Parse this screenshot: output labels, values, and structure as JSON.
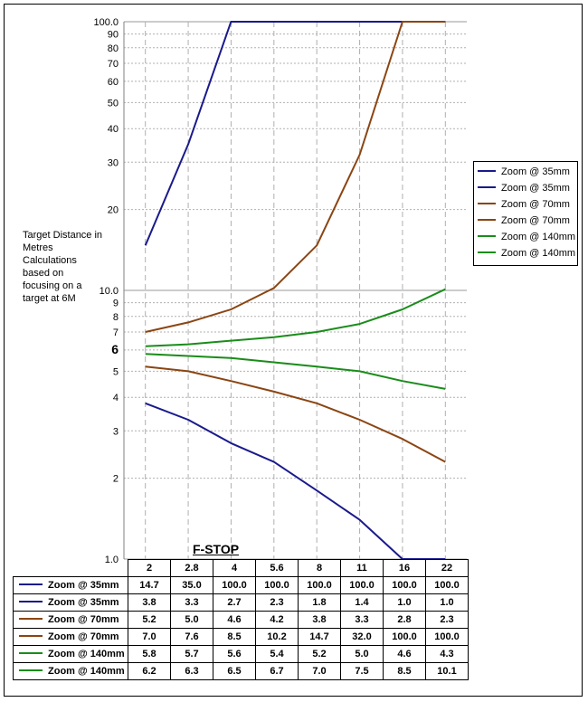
{
  "chart_data": {
    "type": "line",
    "x": [
      "2",
      "2.8",
      "4",
      "5.6",
      "8",
      "11",
      "16",
      "22"
    ],
    "xlabel": "F-STOP",
    "ylabel_lines": [
      "Target Distance in",
      "Metres",
      "Calculations",
      "based on",
      "focusing on a",
      "target at 6M"
    ],
    "yscale": "log",
    "ylim": [
      1.0,
      100.0
    ],
    "yticks": [
      {
        "value": 1.0,
        "label": "1.0"
      },
      {
        "value": 2,
        "label": "2"
      },
      {
        "value": 3,
        "label": "3"
      },
      {
        "value": 4,
        "label": "4"
      },
      {
        "value": 5,
        "label": "5"
      },
      {
        "value": 6,
        "label": "6"
      },
      {
        "value": 7,
        "label": "7"
      },
      {
        "value": 8,
        "label": "8"
      },
      {
        "value": 9,
        "label": "9"
      },
      {
        "value": 10.0,
        "label": "10.0"
      },
      {
        "value": 20,
        "label": "20"
      },
      {
        "value": 30,
        "label": "30"
      },
      {
        "value": 40,
        "label": "40"
      },
      {
        "value": 50,
        "label": "50"
      },
      {
        "value": 60,
        "label": "60"
      },
      {
        "value": 70,
        "label": "70"
      },
      {
        "value": 80,
        "label": "80"
      },
      {
        "value": 90,
        "label": "90"
      },
      {
        "value": 100.0,
        "label": "100.0"
      }
    ],
    "legend_position": "right",
    "series": [
      {
        "name": "Zoom @ 35mm",
        "color": "#1a1a8c",
        "values": [
          14.7,
          35.0,
          100.0,
          100.0,
          100.0,
          100.0,
          100.0,
          100.0
        ],
        "display": [
          "14.7",
          "35.0",
          "100.0",
          "100.0",
          "100.0",
          "100.0",
          "100.0",
          "100.0"
        ]
      },
      {
        "name": "Zoom @ 35mm",
        "color": "#1a1a8c",
        "values": [
          3.8,
          3.3,
          2.7,
          2.3,
          1.8,
          1.4,
          1.0,
          1.0
        ],
        "display": [
          "3.8",
          "3.3",
          "2.7",
          "2.3",
          "1.8",
          "1.4",
          "1.0",
          "1.0"
        ]
      },
      {
        "name": "Zoom @ 70mm",
        "color": "#8b4513",
        "values": [
          5.2,
          5.0,
          4.6,
          4.2,
          3.8,
          3.3,
          2.8,
          2.3
        ],
        "display": [
          "5.2",
          "5.0",
          "4.6",
          "4.2",
          "3.8",
          "3.3",
          "2.8",
          "2.3"
        ]
      },
      {
        "name": "Zoom @ 70mm",
        "color": "#8b4513",
        "values": [
          7.0,
          7.6,
          8.5,
          10.2,
          14.7,
          32.0,
          100.0,
          100.0
        ],
        "display": [
          "7.0",
          "7.6",
          "8.5",
          "10.2",
          "14.7",
          "32.0",
          "100.0",
          "100.0"
        ]
      },
      {
        "name": "Zoom @ 140mm",
        "color": "#1a8c1a",
        "values": [
          5.8,
          5.7,
          5.6,
          5.4,
          5.2,
          5.0,
          4.6,
          4.3
        ],
        "display": [
          "5.8",
          "5.7",
          "5.6",
          "5.4",
          "5.2",
          "5.0",
          "4.6",
          "4.3"
        ]
      },
      {
        "name": "Zoom @ 140mm",
        "color": "#1a8c1a",
        "values": [
          6.2,
          6.3,
          6.5,
          6.7,
          7.0,
          7.5,
          8.5,
          10.1
        ],
        "display": [
          "6.2",
          "6.3",
          "6.5",
          "6.7",
          "7.0",
          "7.5",
          "8.5",
          "10.1"
        ]
      }
    ],
    "legend_order": [
      0,
      1,
      3,
      2,
      4,
      5
    ]
  }
}
